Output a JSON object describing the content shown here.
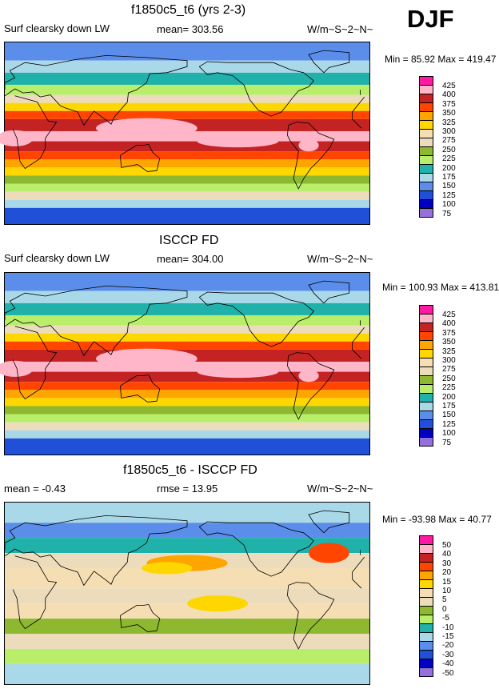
{
  "season": "DJF",
  "panels": [
    {
      "title": "f1850c5_t6 (yrs 2-3)",
      "left_label": "Surf clearsky down LW",
      "center_label": "mean= 303.56",
      "units": "W/m~S~2~N~",
      "minmax": "Min =  85.92 Max = 419.47",
      "levels": [
        "425",
        "400",
        "375",
        "350",
        "325",
        "300",
        "275",
        "250",
        "225",
        "200",
        "175",
        "150",
        "125",
        "100",
        "75"
      ]
    },
    {
      "title": "ISCCP FD",
      "left_label": "Surf clearsky down LW",
      "center_label": "mean= 304.00",
      "units": "W/m~S~2~N~",
      "minmax": "Min = 100.93 Max = 413.81",
      "levels": [
        "425",
        "400",
        "375",
        "350",
        "325",
        "300",
        "275",
        "250",
        "225",
        "200",
        "175",
        "150",
        "125",
        "100",
        "75"
      ]
    },
    {
      "title": "f1850c5_t6 - ISCCP FD",
      "left_label": "mean =  -0.43",
      "center_label": "rmse =  13.95",
      "units": "W/m~S~2~N~",
      "minmax": "Min = -93.98 Max =  40.77",
      "levels": [
        "50",
        "40",
        "30",
        "20",
        "15",
        "10",
        "5",
        "0",
        "-5",
        "-10",
        "-15",
        "-20",
        "-30",
        "-40",
        "-50"
      ]
    }
  ],
  "colors": [
    "#ff1aa3",
    "#ffb6c8",
    "#c42323",
    "#ff4500",
    "#ffa500",
    "#ffd700",
    "#f5deb3",
    "#ecdcbc",
    "#8db82f",
    "#b8ee6a",
    "#20b2aa",
    "#a9d9e8",
    "#5b8eea",
    "#2050d8",
    "#0000c0",
    "#9370db"
  ]
}
